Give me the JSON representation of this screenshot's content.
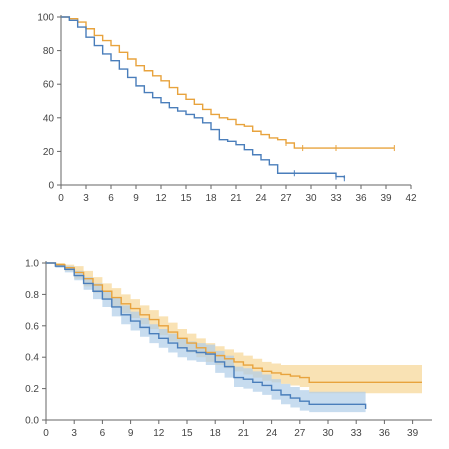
{
  "colors": {
    "orange": "#E8A33D",
    "blue": "#4A7EBB",
    "orange_band": "#F6D594",
    "blue_band": "#AFCDE8",
    "axis": "#666666"
  },
  "chart_data": [
    {
      "type": "line",
      "xlim": [
        0,
        42
      ],
      "ylim": [
        0,
        100
      ],
      "x_ticks": [
        0,
        3,
        6,
        9,
        12,
        15,
        18,
        21,
        24,
        27,
        30,
        33,
        36,
        39,
        42
      ],
      "y_ticks": [
        0,
        20,
        40,
        60,
        80,
        100
      ],
      "x_tick_labels": [
        "0",
        "3",
        "6",
        "9",
        "12",
        "15",
        "18",
        "21",
        "24",
        "27",
        "30",
        "33",
        "36",
        "39",
        "42"
      ],
      "y_tick_labels": [
        "0",
        "20",
        "40",
        "60",
        "80",
        "100"
      ],
      "grid": false,
      "series": [
        {
          "color": "orange",
          "x": [
            0,
            1,
            2,
            3,
            4,
            5,
            6,
            7,
            8,
            9,
            10,
            11,
            12,
            13,
            14,
            15,
            16,
            17,
            18,
            19,
            20,
            21,
            22,
            23,
            24,
            25,
            26,
            27,
            28,
            29,
            30,
            32,
            34,
            36,
            38,
            40
          ],
          "y": [
            100,
            99,
            97,
            93,
            89,
            86,
            83,
            79,
            75,
            71,
            68,
            65,
            62,
            58,
            54,
            51,
            48,
            45,
            42,
            40,
            39,
            36,
            35,
            32,
            30,
            28,
            27,
            25,
            22,
            22,
            22,
            22,
            22,
            22,
            22,
            22
          ],
          "censor_x": [
            27,
            29,
            33,
            40
          ]
        },
        {
          "color": "blue",
          "x": [
            0,
            1,
            2,
            3,
            4,
            5,
            6,
            7,
            8,
            9,
            10,
            11,
            12,
            13,
            14,
            15,
            16,
            17,
            18,
            19,
            20,
            21,
            22,
            23,
            24,
            25,
            26,
            28,
            30,
            32,
            33,
            34
          ],
          "y": [
            100,
            98,
            94,
            88,
            83,
            78,
            74,
            69,
            64,
            59,
            55,
            52,
            49,
            46,
            44,
            42,
            40,
            37,
            33,
            27,
            26,
            24,
            21,
            18,
            15,
            12,
            7,
            7,
            7,
            7,
            5,
            4
          ],
          "censor_x": [
            28,
            33,
            34
          ]
        }
      ]
    },
    {
      "type": "line",
      "xlim": [
        0,
        40
      ],
      "ylim": [
        0,
        1
      ],
      "x_ticks": [
        0,
        3,
        6,
        9,
        12,
        15,
        18,
        21,
        24,
        27,
        30,
        33,
        36,
        39
      ],
      "y_ticks": [
        0,
        0.2,
        0.4,
        0.6,
        0.8,
        1.0
      ],
      "x_tick_labels": [
        "0",
        "3",
        "6",
        "9",
        "12",
        "15",
        "18",
        "21",
        "24",
        "27",
        "30",
        "33",
        "36",
        "39"
      ],
      "y_tick_labels": [
        "0.0",
        "0.2",
        "0.4",
        "0.6",
        "0.8",
        "1.0"
      ],
      "grid": false,
      "series": [
        {
          "color": "orange",
          "x": [
            0,
            1,
            2,
            3,
            4,
            5,
            6,
            7,
            8,
            9,
            10,
            11,
            12,
            13,
            14,
            15,
            16,
            17,
            18,
            19,
            20,
            21,
            22,
            23,
            24,
            25,
            26,
            27,
            28,
            30,
            32,
            34,
            36,
            38,
            40
          ],
          "y": [
            1.0,
            0.99,
            0.97,
            0.94,
            0.9,
            0.86,
            0.82,
            0.78,
            0.74,
            0.71,
            0.67,
            0.64,
            0.6,
            0.56,
            0.52,
            0.49,
            0.46,
            0.43,
            0.41,
            0.39,
            0.37,
            0.35,
            0.33,
            0.31,
            0.3,
            0.29,
            0.28,
            0.27,
            0.24,
            0.24,
            0.24,
            0.24,
            0.24,
            0.24,
            0.24
          ],
          "lower": [
            1.0,
            0.98,
            0.95,
            0.9,
            0.85,
            0.81,
            0.77,
            0.72,
            0.68,
            0.65,
            0.61,
            0.58,
            0.54,
            0.5,
            0.46,
            0.43,
            0.4,
            0.37,
            0.35,
            0.33,
            0.31,
            0.29,
            0.27,
            0.25,
            0.24,
            0.23,
            0.22,
            0.21,
            0.17,
            0.17,
            0.17,
            0.17,
            0.17,
            0.17,
            0.17
          ],
          "upper": [
            1.0,
            1.0,
            0.99,
            0.98,
            0.95,
            0.91,
            0.87,
            0.84,
            0.8,
            0.77,
            0.73,
            0.7,
            0.66,
            0.62,
            0.58,
            0.55,
            0.52,
            0.49,
            0.47,
            0.45,
            0.43,
            0.41,
            0.39,
            0.37,
            0.36,
            0.35,
            0.35,
            0.35,
            0.35,
            0.35,
            0.35,
            0.35,
            0.35,
            0.35,
            0.35
          ]
        },
        {
          "color": "blue",
          "x": [
            0,
            1,
            2,
            3,
            4,
            5,
            6,
            7,
            8,
            9,
            10,
            11,
            12,
            13,
            14,
            15,
            16,
            17,
            18,
            19,
            20,
            21,
            22,
            23,
            24,
            25,
            26,
            27,
            28,
            29,
            30,
            32,
            34
          ],
          "y": [
            1.0,
            0.98,
            0.96,
            0.92,
            0.87,
            0.82,
            0.77,
            0.72,
            0.67,
            0.63,
            0.59,
            0.55,
            0.52,
            0.49,
            0.46,
            0.44,
            0.43,
            0.42,
            0.37,
            0.34,
            0.27,
            0.26,
            0.24,
            0.22,
            0.19,
            0.16,
            0.14,
            0.12,
            0.1,
            0.1,
            0.1,
            0.1,
            0.07
          ],
          "lower": [
            1.0,
            0.97,
            0.94,
            0.89,
            0.83,
            0.77,
            0.72,
            0.66,
            0.61,
            0.57,
            0.53,
            0.49,
            0.46,
            0.43,
            0.4,
            0.38,
            0.37,
            0.35,
            0.3,
            0.27,
            0.21,
            0.2,
            0.18,
            0.16,
            0.13,
            0.1,
            0.08,
            0.06,
            0.05,
            0.05,
            0.05,
            0.05,
            0.03
          ],
          "upper": [
            1.0,
            0.99,
            0.98,
            0.95,
            0.91,
            0.87,
            0.82,
            0.78,
            0.73,
            0.69,
            0.65,
            0.61,
            0.58,
            0.55,
            0.52,
            0.5,
            0.49,
            0.48,
            0.44,
            0.41,
            0.34,
            0.33,
            0.31,
            0.29,
            0.26,
            0.23,
            0.21,
            0.19,
            0.18,
            0.18,
            0.18,
            0.18,
            0.15
          ]
        }
      ]
    }
  ]
}
